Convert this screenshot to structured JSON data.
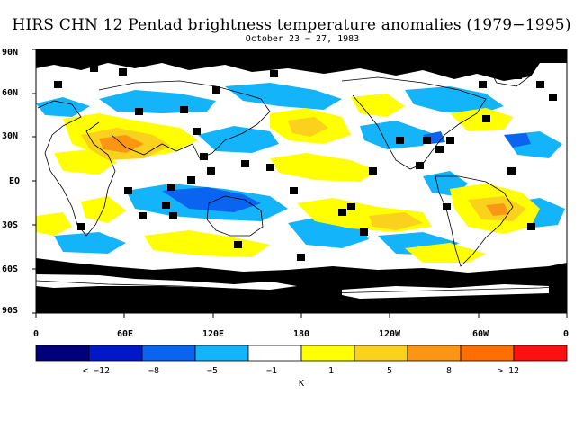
{
  "title": "HIRS CHN 12 Pentad brightness temperature anomalies (1979−1995)",
  "subtitle": "October 23 − 27, 1983",
  "lat_labels": [
    "90N",
    "60N",
    "30N",
    "EQ",
    "30S",
    "60S",
    "90S"
  ],
  "lon_labels": [
    "0",
    "60E",
    "120E",
    "180",
    "120W",
    "60W",
    "0"
  ],
  "units": "K",
  "colorbar": {
    "colors": [
      "#00007a",
      "#0018c8",
      "#0a64f0",
      "#14b4fa",
      "#ffffff",
      "#ffff00",
      "#fad21e",
      "#fa9614",
      "#ff6e00",
      "#ff1010"
    ],
    "labels": [
      "< −12",
      "−8",
      "−5",
      "−1",
      "1",
      "5",
      "8",
      "> 12"
    ]
  },
  "map_colors": {
    "missing": "#000000",
    "cold_anomaly": "#14b4fa",
    "strong_cold": "#0a64f0",
    "warm_anomaly": "#ffff00",
    "strong_warm": "#fad21e",
    "very_warm": "#fa9614",
    "coast": "#000000"
  }
}
